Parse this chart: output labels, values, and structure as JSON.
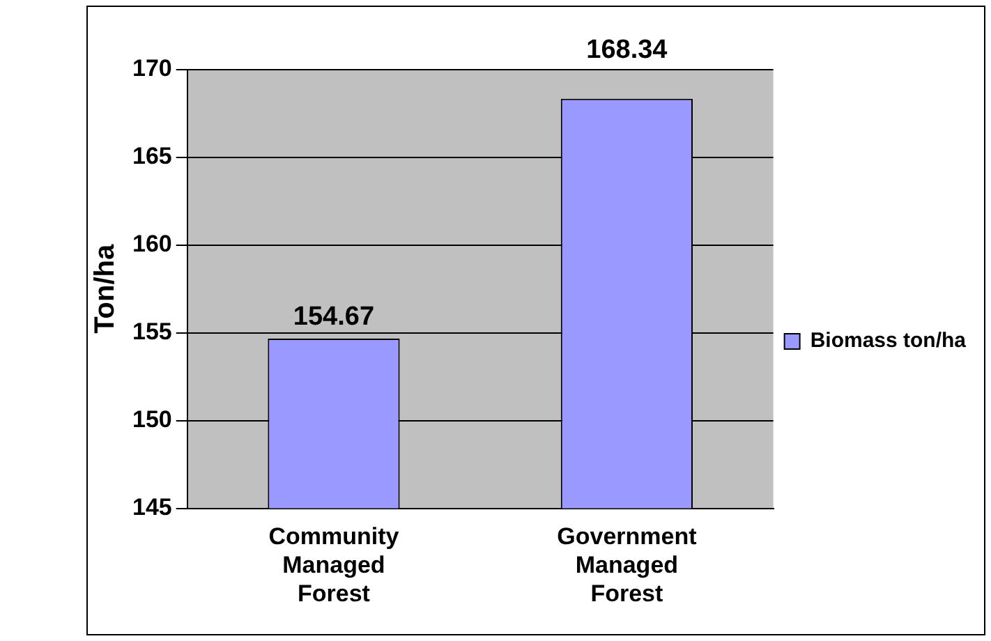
{
  "chart_data": {
    "type": "bar",
    "ylabel": "Ton/ha",
    "categories": [
      "Community Managed Forest",
      "Government Managed Forest"
    ],
    "series": [
      {
        "name": "Biomass ton/ha",
        "color": "#9999ff",
        "values": [
          154.67,
          168.34
        ]
      }
    ],
    "ylim": [
      145,
      170
    ],
    "yticks": [
      145,
      150,
      155,
      160,
      165,
      170
    ],
    "grid": "y",
    "legend": "right",
    "data_labels": true
  }
}
